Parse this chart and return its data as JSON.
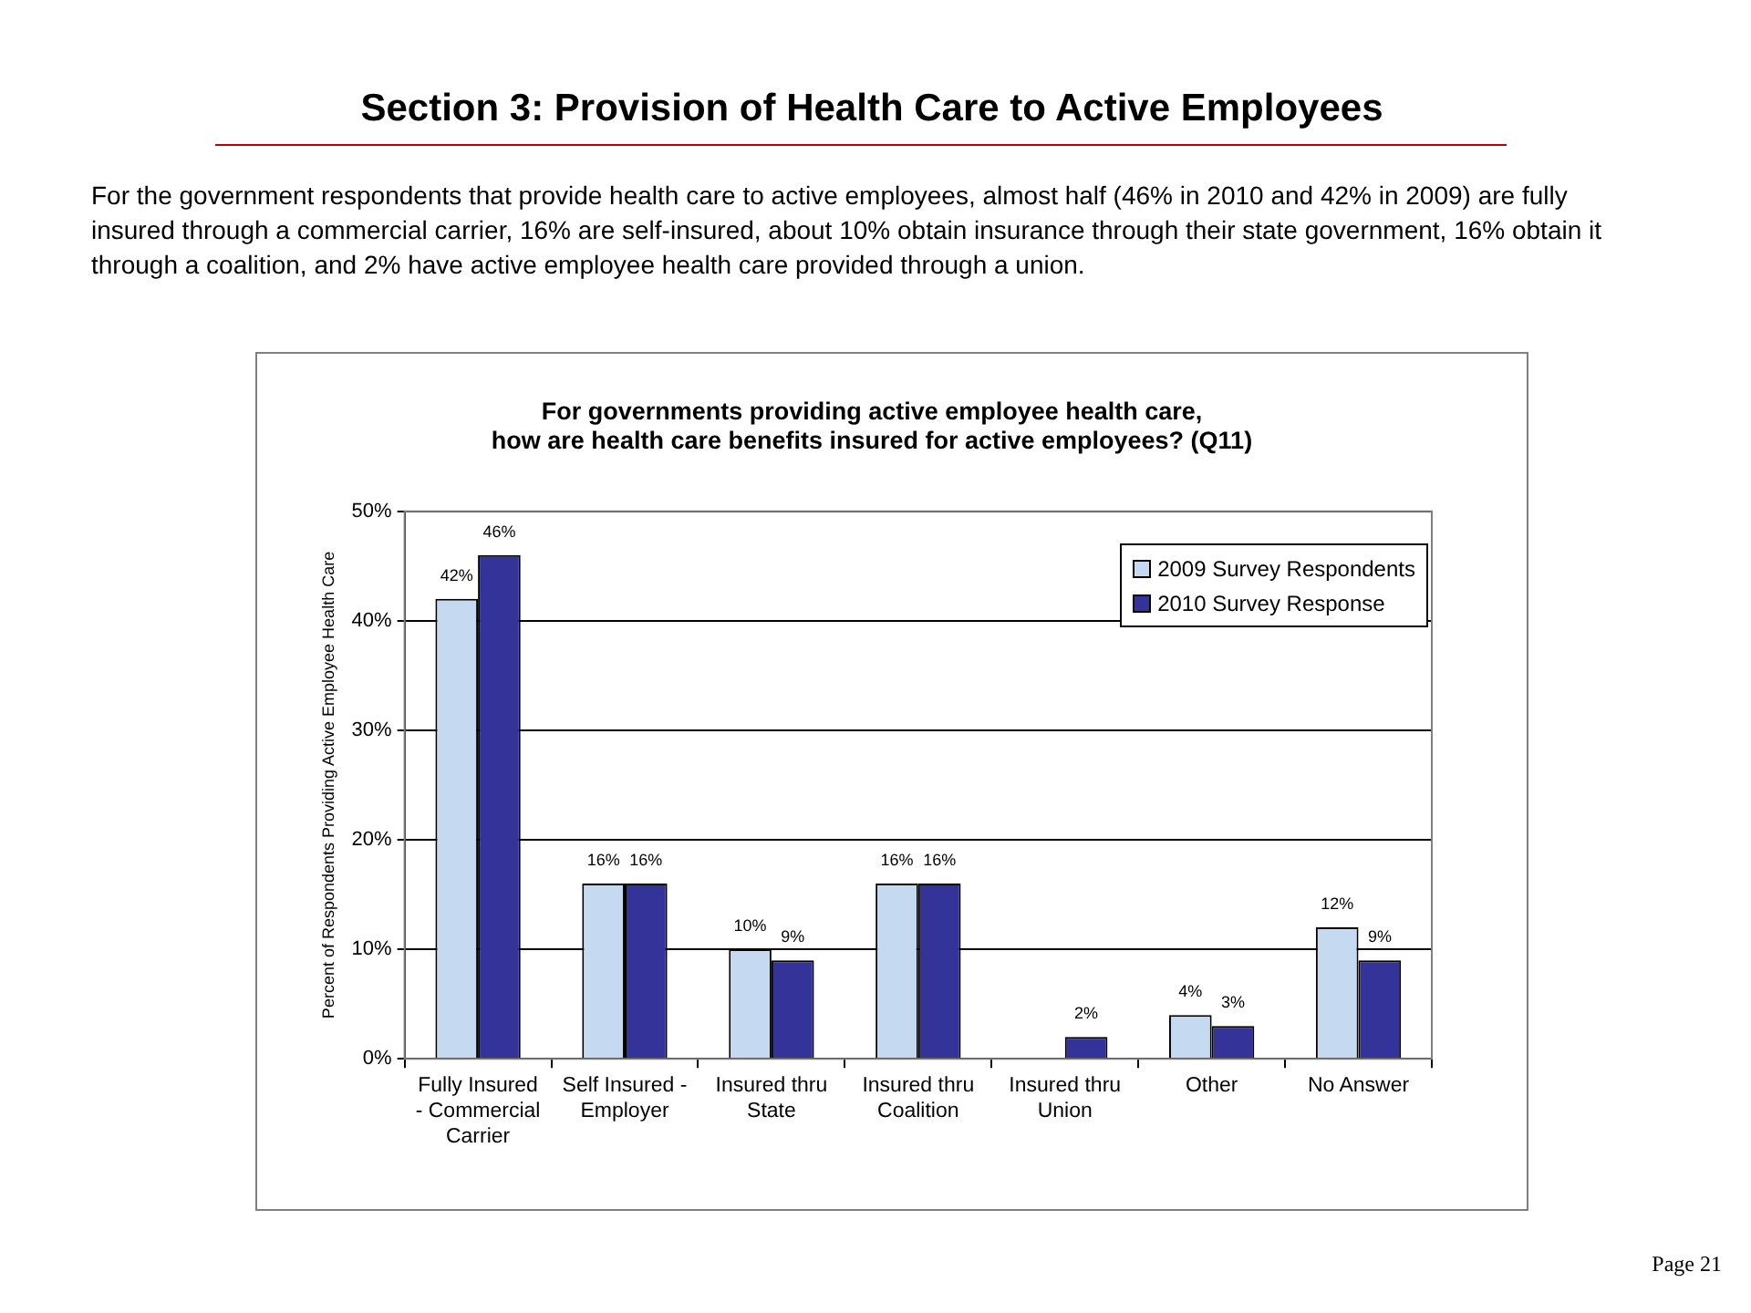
{
  "chart_data": {
    "type": "bar",
    "title": "For governments providing active employee health care,\nhow are health care benefits insured for active employees? (Q11)",
    "ylabel": "Percent of Respondents Providing Active Employee Health Care",
    "annotations": [
      "Section 3: Provision of Health Care to Active Employees",
      "For the government respondents that provide health care to active employees, almost half (46% in 2010 and 42% in 2009) are fully insured through a commercial carrier, 16% are self-insured, about 10% obtain insurance through their state government, 16% obtain it through a coalition, and 2% have active employee health care provided through a union.",
      "Page 21"
    ],
    "categories": [
      "Fully Insured - Commercial Carrier",
      "Self Insured - Employer",
      "Insured thru State",
      "Insured thru Coalition",
      "Insured thru Union",
      "Other",
      "No Answer"
    ],
    "series": [
      {
        "name": "2009 Survey Respondents",
        "color": "#c5d9f1",
        "values": [
          42,
          16,
          10,
          16,
          null,
          4,
          12
        ],
        "value_labels": [
          "42%",
          "16%",
          "10%",
          "16%",
          null,
          "4%",
          "12%"
        ]
      },
      {
        "name": "2010 Survey Response",
        "color": "#333399",
        "values": [
          46,
          16,
          9,
          16,
          2,
          3,
          9
        ],
        "value_labels": [
          "46%",
          "16%",
          "9%",
          "16%",
          "2%",
          "3%",
          "9%"
        ]
      }
    ],
    "ylim": [
      0,
      50
    ],
    "yticks": [
      {
        "value": 0,
        "label": "0%"
      },
      {
        "value": 10,
        "label": "10%"
      },
      {
        "value": 20,
        "label": "20%"
      },
      {
        "value": 30,
        "label": "30%"
      },
      {
        "value": 40,
        "label": "40%"
      },
      {
        "value": 50,
        "label": "50%"
      }
    ],
    "grid": "y",
    "legend": "top right"
  }
}
